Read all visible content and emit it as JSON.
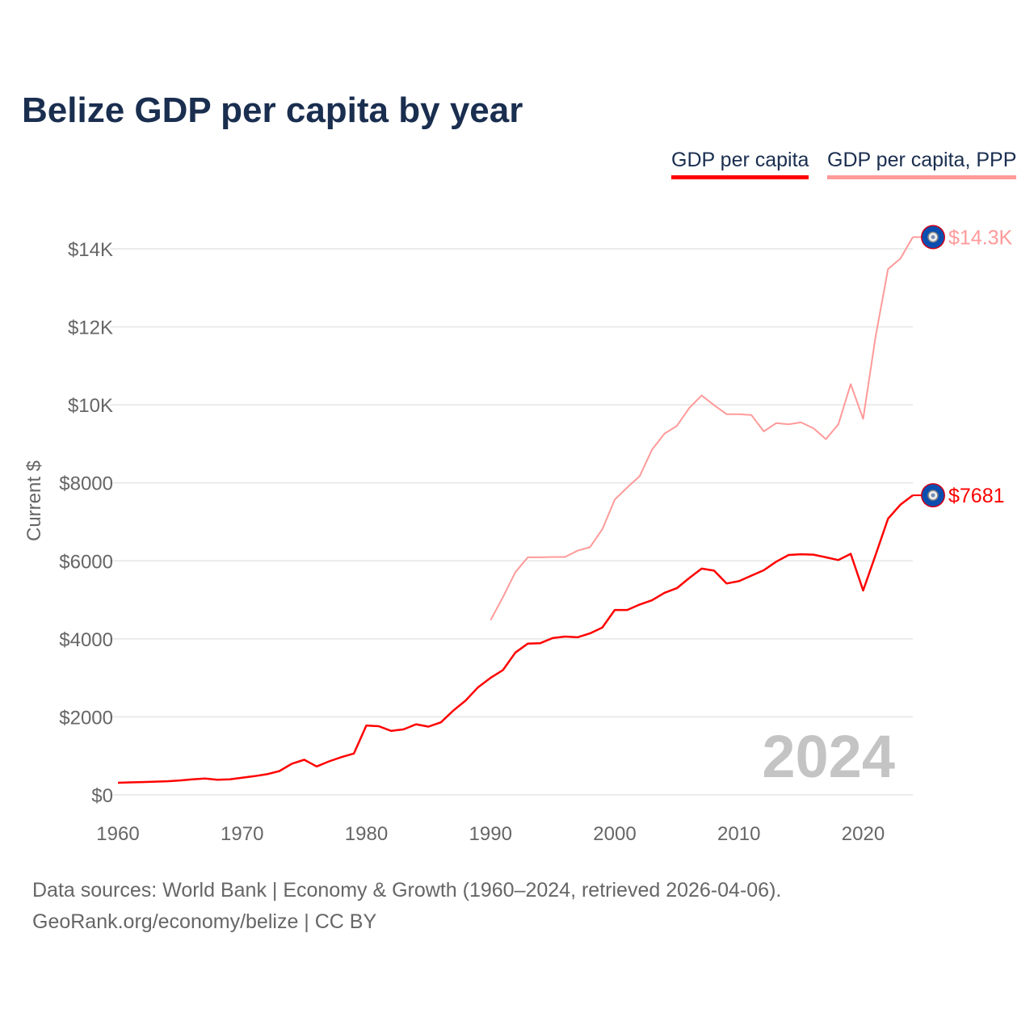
{
  "chart_data": {
    "type": "line",
    "title": "Belize GDP per capita by year",
    "ylabel": "Current $",
    "xlabel": "",
    "xlim": [
      1960,
      2024
    ],
    "ylim": [
      0,
      14000
    ],
    "x_ticks": [
      "1960",
      "1970",
      "1980",
      "1990",
      "2000",
      "2010",
      "2020"
    ],
    "y_ticks": [
      "$0",
      "$2000",
      "$4000",
      "$6000",
      "$8000",
      "$10K",
      "$12K",
      "$14K"
    ],
    "grid": true,
    "legend_position": "top-right",
    "year_watermark": "2024",
    "series": [
      {
        "name": "GDP per capita",
        "color": "#ff0000",
        "end_label": "$7681",
        "start_year": 1960,
        "values": [
          310,
          320,
          330,
          340,
          350,
          370,
          400,
          420,
          390,
          400,
          440,
          480,
          530,
          610,
          800,
          900,
          730,
          860,
          970,
          1060,
          1780,
          1760,
          1640,
          1680,
          1810,
          1750,
          1860,
          2160,
          2420,
          2760,
          3000,
          3200,
          3650,
          3880,
          3890,
          4020,
          4060,
          4040,
          4140,
          4290,
          4740,
          4740,
          4880,
          4990,
          5180,
          5300,
          5560,
          5800,
          5750,
          5420,
          5480,
          5620,
          5760,
          5980,
          6150,
          6170,
          6160,
          6090,
          6020,
          6180,
          5240,
          6150,
          7080,
          7440,
          7681
        ]
      },
      {
        "name": "GDP per capita, PPP",
        "color": "#ff9a9a",
        "end_label": "$14.3K",
        "start_year": 1990,
        "values": [
          4480,
          5070,
          5710,
          6090,
          6090,
          6100,
          6100,
          6260,
          6350,
          6810,
          7570,
          7880,
          8170,
          8850,
          9260,
          9460,
          9920,
          10240,
          9990,
          9760,
          9760,
          9740,
          9320,
          9530,
          9500,
          9550,
          9400,
          9120,
          9500,
          10530,
          9640,
          11750,
          13480,
          13750,
          14300
        ]
      }
    ]
  },
  "footer": {
    "line1": "Data sources: World Bank | Economy & Growth (1960–2024, retrieved 2026-04-06).",
    "line2": "GeoRank.org/economy/belize | CC BY"
  }
}
